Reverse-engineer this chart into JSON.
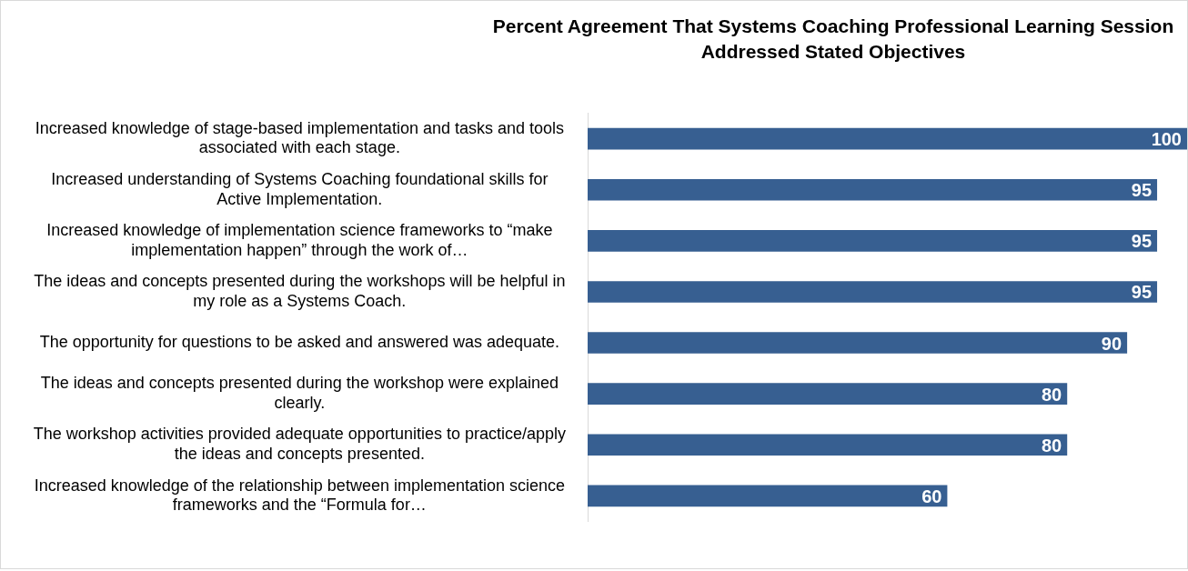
{
  "chart_data": {
    "type": "bar",
    "orientation": "horizontal",
    "title": "Percent Agreement That Systems Coaching Professional Learning Session Addressed Stated Objectives",
    "categories": [
      "Increased knowledge of stage-based implementation and tasks and tools associated with each stage.",
      "Increased understanding of Systems Coaching foundational skills for Active Implementation.",
      "Increased knowledge of implementation science frameworks to “make implementation happen” through the work of…",
      "The ideas and concepts presented during the workshops will be helpful in my role as a Systems Coach.",
      "The opportunity for questions to be asked and answered was adequate.",
      "The ideas and concepts presented during the workshop were explained clearly.",
      "The workshop activities provided adequate opportunities to practice/apply the ideas and concepts presented.",
      "Increased knowledge of the relationship between implementation science frameworks and the “Formula for…"
    ],
    "values": [
      100,
      95,
      95,
      95,
      90,
      80,
      80,
      60
    ],
    "color": "#375f91",
    "xlim": [
      0,
      100
    ],
    "tick_labels": "y",
    "grid": false,
    "legend": false,
    "data_labels": true
  }
}
